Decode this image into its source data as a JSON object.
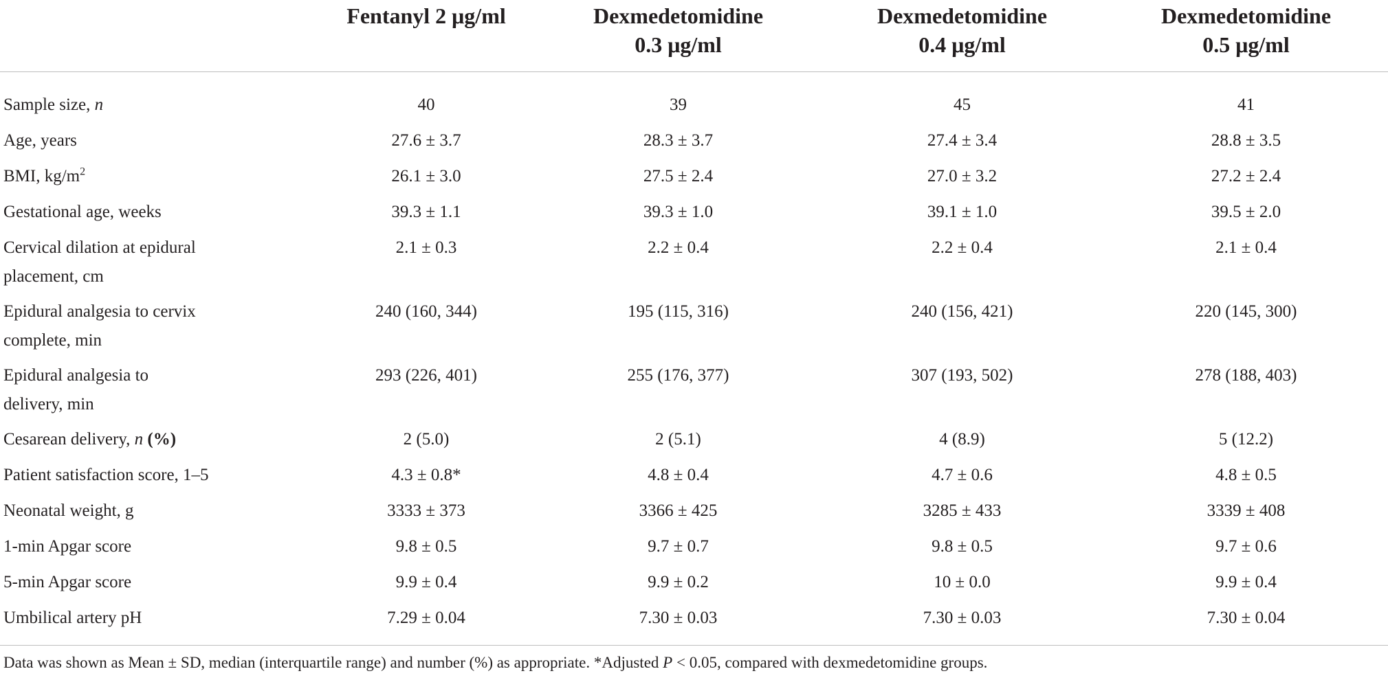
{
  "table": {
    "headers": [
      [
        ""
      ],
      [
        "Fentanyl 2 μg/ml"
      ],
      [
        "Dexmedetomidine",
        "0.3 μg/ml"
      ],
      [
        "Dexmedetomidine",
        "0.4 μg/ml"
      ],
      [
        "Dexmedetomidine",
        "0.5 μg/ml"
      ]
    ],
    "rows": [
      {
        "label_lines": [
          [
            "Sample size, ",
            "n"
          ]
        ],
        "values": [
          "40",
          "39",
          "45",
          "41"
        ]
      },
      {
        "label_lines": [
          [
            "Age, years"
          ]
        ],
        "values": [
          "27.6 ± 3.7",
          "28.3 ± 3.7",
          "27.4 ± 3.4",
          "28.8 ± 3.5"
        ]
      },
      {
        "label_lines": [
          [
            "BMI, kg/m",
            "2"
          ]
        ],
        "values": [
          "26.1 ± 3.0",
          "27.5 ± 2.4",
          "27.0 ± 3.2",
          "27.2 ± 2.4"
        ]
      },
      {
        "label_lines": [
          [
            "Gestational age, weeks"
          ]
        ],
        "values": [
          "39.3 ± 1.1",
          "39.3 ± 1.0",
          "39.1 ± 1.0",
          "39.5 ± 2.0"
        ]
      },
      {
        "label_lines": [
          [
            "Cervical dilation at epidural"
          ],
          [
            "placement, cm"
          ]
        ],
        "values": [
          "2.1 ± 0.3",
          "2.2 ± 0.4",
          "2.2 ± 0.4",
          "2.1 ± 0.4"
        ]
      },
      {
        "label_lines": [
          [
            "Epidural analgesia to cervix"
          ],
          [
            "complete, min"
          ]
        ],
        "values": [
          "240 (160, 344)",
          "195 (115, 316)",
          "240 (156, 421)",
          "220 (145, 300)"
        ]
      },
      {
        "label_lines": [
          [
            "Epidural analgesia to"
          ],
          [
            "delivery, min"
          ]
        ],
        "values": [
          "293 (226, 401)",
          "255 (176, 377)",
          "307 (193, 502)",
          "278 (188, 403)"
        ]
      },
      {
        "label_lines": [
          [
            "Cesarean delivery, ",
            "n",
            " (%)"
          ]
        ],
        "values": [
          "2 (5.0)",
          "2 (5.1)",
          "4 (8.9)",
          "5 (12.2)"
        ]
      },
      {
        "label_lines": [
          [
            "Patient satisfaction score, 1–5"
          ]
        ],
        "values": [
          "4.3 ± 0.8*",
          "4.8 ± 0.4",
          "4.7 ± 0.6",
          "4.8 ± 0.5"
        ]
      },
      {
        "label_lines": [
          [
            "Neonatal weight, g"
          ]
        ],
        "values": [
          "3333 ± 373",
          "3366 ± 425",
          "3285 ± 433",
          "3339 ± 408"
        ]
      },
      {
        "label_lines": [
          [
            "1-min Apgar score"
          ]
        ],
        "values": [
          "9.8 ± 0.5",
          "9.7 ± 0.7",
          "9.8 ± 0.5",
          "9.7 ± 0.6"
        ]
      },
      {
        "label_lines": [
          [
            "5-min Apgar score"
          ]
        ],
        "values": [
          "9.9 ± 0.4",
          "9.9 ± 0.2",
          "10 ± 0.0",
          "9.9 ± 0.4"
        ]
      },
      {
        "label_lines": [
          [
            "Umbilical artery pH"
          ]
        ],
        "values": [
          "7.29 ± 0.04",
          "7.30 ± 0.03",
          "7.30 ± 0.03",
          "7.30 ± 0.04"
        ]
      }
    ]
  },
  "footnote": {
    "part1": "Data was shown as Mean ± SD, median (interquartile range) and number (%) as appropriate. *Adjusted ",
    "p_symbol": "P",
    "part2": " < 0.05, compared with dexmedetomidine groups."
  }
}
